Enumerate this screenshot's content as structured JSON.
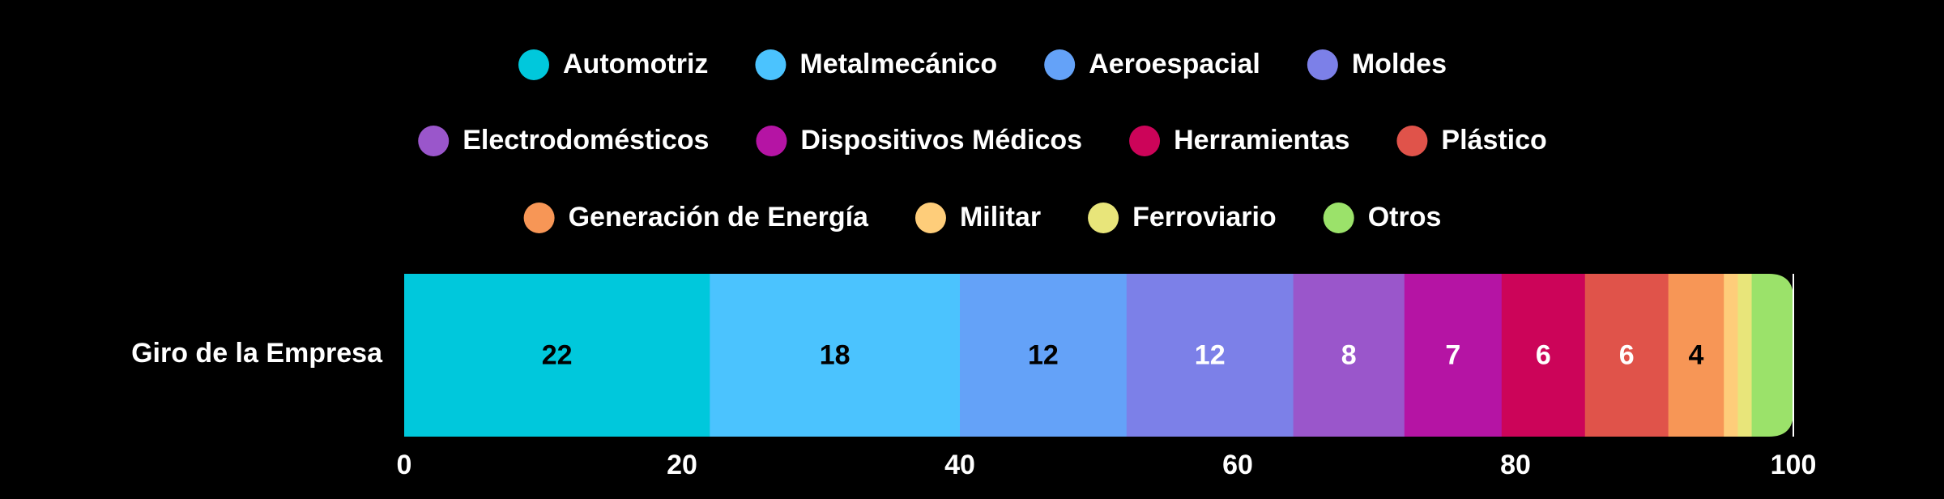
{
  "chart_data": {
    "type": "bar",
    "orientation": "horizontal",
    "stacked": true,
    "categories": [
      "Giro de la Empresa"
    ],
    "series": [
      {
        "name": "Automotriz",
        "values": [
          22
        ],
        "color": "#00c8dc",
        "label": "22",
        "label_color": "#000000"
      },
      {
        "name": "Metalmecánico",
        "values": [
          18
        ],
        "color": "#4bc3fe",
        "label": "18",
        "label_color": "#000000"
      },
      {
        "name": "Aeroespacial",
        "values": [
          12
        ],
        "color": "#64a2f8",
        "label": "12",
        "label_color": "#000000"
      },
      {
        "name": "Moldes",
        "values": [
          12
        ],
        "color": "#7c80e8",
        "label": "12",
        "label_color": "#ffffff"
      },
      {
        "name": "Electrodomésticos",
        "values": [
          8
        ],
        "color": "#9a56cb",
        "label": "8",
        "label_color": "#ffffff"
      },
      {
        "name": "Dispositivos Médicos",
        "values": [
          7
        ],
        "color": "#b514a4",
        "label": "7",
        "label_color": "#ffffff"
      },
      {
        "name": "Herramientas",
        "values": [
          6
        ],
        "color": "#cc0459",
        "label": "6",
        "label_color": "#ffffff"
      },
      {
        "name": "Plástico",
        "values": [
          6
        ],
        "color": "#e0534a",
        "label": "6",
        "label_color": "#ffffff"
      },
      {
        "name": "Generación de Energía",
        "values": [
          4
        ],
        "color": "#f79656",
        "label": "4",
        "label_color": "#000000"
      },
      {
        "name": "Militar",
        "values": [
          1
        ],
        "color": "#fecd7a",
        "label": "",
        "label_color": "#000000"
      },
      {
        "name": "Ferroviario",
        "values": [
          1
        ],
        "color": "#e8e57a",
        "label": "",
        "label_color": "#000000"
      },
      {
        "name": "Otros",
        "values": [
          3
        ],
        "color": "#9be26a",
        "label": "",
        "label_color": "#000000"
      }
    ],
    "xlim": [
      0,
      100
    ],
    "x_ticks": [
      "0",
      "20",
      "40",
      "60",
      "80",
      "100"
    ],
    "title": "",
    "xlabel": "",
    "ylabel": "",
    "grid": false,
    "legend_position": "top",
    "background": "#000000",
    "text_color": "#ffffff"
  }
}
